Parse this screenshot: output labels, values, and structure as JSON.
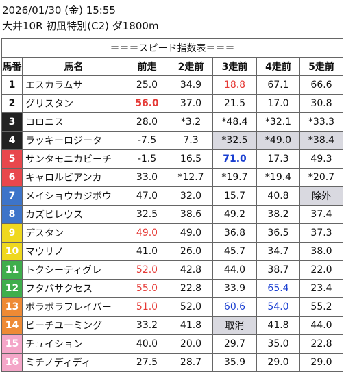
{
  "header": {
    "line1": "2026/01/30 (金) 15:55",
    "line2": "大井10R 初凪特別(C2) ダ1800m"
  },
  "table": {
    "title": "＝＝＝スピード指数表＝＝＝",
    "columns": [
      "馬番",
      "馬名",
      "前走",
      "2走前",
      "3走前",
      "4走前",
      "5走前"
    ],
    "rows": [
      {
        "num": "1",
        "name": "エスカラムサ",
        "vals": [
          "25.0",
          "34.9",
          "18.8",
          "67.1",
          "66.6"
        ],
        "bg": "#ffffff",
        "fg": "#111111"
      },
      {
        "num": "2",
        "name": "グリスタン",
        "vals": [
          "56.0",
          "37.0",
          "21.5",
          "17.0",
          "30.8"
        ],
        "bg": "#ffffff",
        "fg": "#111111"
      },
      {
        "num": "3",
        "name": "コロニス",
        "vals": [
          "28.0",
          "*3.2",
          "*48.4",
          "*32.1",
          "*33.3"
        ],
        "bg": "#222222",
        "fg": "#ffffff"
      },
      {
        "num": "4",
        "name": "ラッキーロジータ",
        "vals": [
          "-7.5",
          "7.3",
          "*32.5",
          "*49.0",
          "*38.4"
        ],
        "bg": "#222222",
        "fg": "#ffffff"
      },
      {
        "num": "5",
        "name": "サンタモニカビーチ",
        "vals": [
          "-1.5",
          "16.5",
          "71.0",
          "17.3",
          "49.3"
        ],
        "bg": "#e8474c",
        "fg": "#ffffff"
      },
      {
        "num": "6",
        "name": "キャロルビアンカ",
        "vals": [
          "33.0",
          "*12.7",
          "*19.7",
          "*19.4",
          "*20.7"
        ],
        "bg": "#e8474c",
        "fg": "#ffffff"
      },
      {
        "num": "7",
        "name": "メイショウカジボウ",
        "vals": [
          "47.0",
          "32.0",
          "15.7",
          "40.8",
          "除外"
        ],
        "bg": "#3d74c9",
        "fg": "#ffffff"
      },
      {
        "num": "8",
        "name": "カズピレウス",
        "vals": [
          "32.5",
          "38.6",
          "49.2",
          "38.2",
          "37.4"
        ],
        "bg": "#3d74c9",
        "fg": "#ffffff"
      },
      {
        "num": "9",
        "name": "デスタン",
        "vals": [
          "49.0",
          "49.0",
          "36.8",
          "36.5",
          "37.3"
        ],
        "bg": "#efd81e",
        "fg": "#ffffff"
      },
      {
        "num": "10",
        "name": "マウリノ",
        "vals": [
          "41.0",
          "26.0",
          "45.7",
          "34.7",
          "38.0"
        ],
        "bg": "#efd81e",
        "fg": "#ffffff"
      },
      {
        "num": "11",
        "name": "トクシーティグレ",
        "vals": [
          "52.0",
          "42.8",
          "44.0",
          "38.7",
          "22.0"
        ],
        "bg": "#3fae4c",
        "fg": "#ffffff"
      },
      {
        "num": "12",
        "name": "フタバサクセス",
        "vals": [
          "55.0",
          "22.8",
          "33.9",
          "65.4",
          "23.4"
        ],
        "bg": "#3fae4c",
        "fg": "#ffffff"
      },
      {
        "num": "13",
        "name": "ボラボラフレイバー",
        "vals": [
          "51.0",
          "52.0",
          "60.6",
          "54.0",
          "55.2"
        ],
        "bg": "#ee8a35",
        "fg": "#ffffff"
      },
      {
        "num": "14",
        "name": "ビーチユーミング",
        "vals": [
          "33.2",
          "41.8",
          "取消",
          "41.8",
          "44.0"
        ],
        "bg": "#ee8a35",
        "fg": "#ffffff"
      },
      {
        "num": "15",
        "name": "チュイション",
        "vals": [
          "40.0",
          "20.0",
          "29.7",
          "35.0",
          "22.8"
        ],
        "bg": "#f4a6c8",
        "fg": "#ffffff"
      },
      {
        "num": "16",
        "name": "ミチノディディ",
        "vals": [
          "27.5",
          "28.7",
          "35.9",
          "29.0",
          "29.0"
        ],
        "bg": "#f4a6c8",
        "fg": "#ffffff"
      }
    ],
    "styles": {
      "0-2": "red",
      "1-0": "red-bold",
      "4-2": "blue-bold",
      "8-0": "red",
      "10-0": "red",
      "11-0": "red",
      "11-3": "blue",
      "12-0": "red",
      "12-2": "blue",
      "12-3": "blue"
    },
    "shaded": [
      "3-2",
      "3-3",
      "3-4",
      "6-4",
      "13-2"
    ],
    "colors": {
      "red": "#e53935",
      "blue": "#1a3fd1",
      "shade": "#d9d9e0"
    }
  }
}
